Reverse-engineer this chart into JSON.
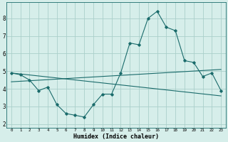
{
  "xlabel": "Humidex (Indice chaleur)",
  "x_values": [
    0,
    1,
    2,
    3,
    4,
    5,
    6,
    7,
    8,
    9,
    10,
    11,
    12,
    13,
    14,
    15,
    16,
    17,
    18,
    19,
    20,
    21,
    22,
    23
  ],
  "line1": [
    4.9,
    4.8,
    4.5,
    3.9,
    4.1,
    3.1,
    2.6,
    2.5,
    2.4,
    3.1,
    3.7,
    3.7,
    4.9,
    6.6,
    6.5,
    8.0,
    8.4,
    7.5,
    7.3,
    5.6,
    5.5,
    4.7,
    4.9,
    3.9
  ],
  "line2_x": [
    0,
    23
  ],
  "line2_y": [
    4.9,
    3.6
  ],
  "line3_x": [
    0,
    23
  ],
  "line3_y": [
    4.4,
    5.1
  ],
  "bg_color": "#d6eeea",
  "line_color": "#1a6b6b",
  "grid_color": "#aacfca",
  "ylim": [
    1.8,
    8.9
  ],
  "yticks": [
    2,
    3,
    4,
    5,
    6,
    7,
    8
  ],
  "xticks": [
    0,
    1,
    2,
    3,
    4,
    5,
    6,
    7,
    8,
    9,
    10,
    11,
    12,
    13,
    14,
    15,
    16,
    17,
    18,
    19,
    20,
    21,
    22,
    23
  ]
}
